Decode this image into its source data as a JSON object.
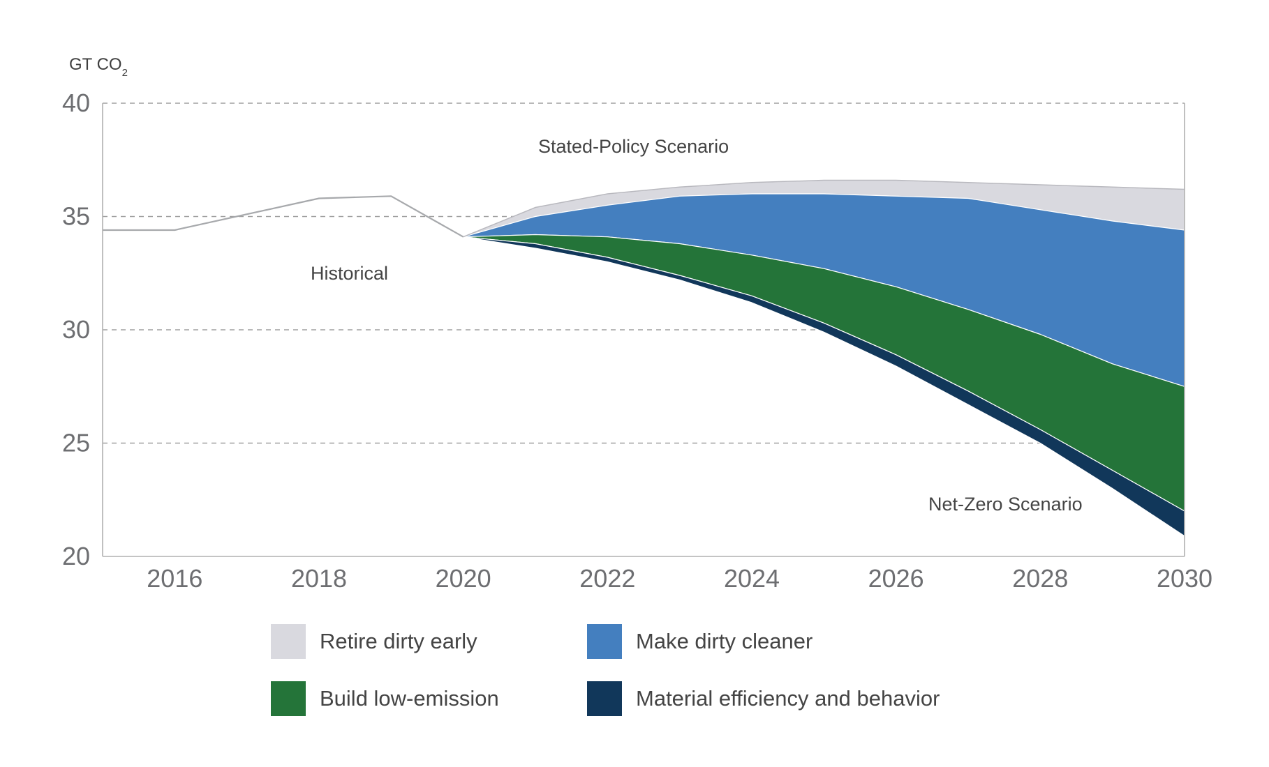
{
  "chart_data": {
    "type": "area",
    "unit_label": {
      "main": "GT CO",
      "sub": "2"
    },
    "x_ticks": [
      "2016",
      "2018",
      "2020",
      "2022",
      "2024",
      "2026",
      "2028",
      "2030"
    ],
    "y_ticks": [
      "20",
      "25",
      "30",
      "35",
      "40"
    ],
    "xlim": [
      2015,
      2030
    ],
    "ylim": [
      20,
      40
    ],
    "grid": {
      "y_dashed": true
    },
    "annotations": {
      "stated_policy": "Stated-Policy Scenario",
      "historical": "Historical",
      "net_zero": "Net-Zero Scenario"
    },
    "colors": {
      "retire": "#d9d9df",
      "cleaner": "#447fbf",
      "build": "#247439",
      "material": "#11375a",
      "historical_line": "#a7a9ac",
      "grid": "#a0a0a0",
      "axis": "#b0b0b0"
    },
    "historical": {
      "x": [
        2015,
        2016,
        2018,
        2019,
        2020
      ],
      "y": [
        34.4,
        34.4,
        35.8,
        35.9,
        34.1
      ]
    },
    "projection_x": [
      2020,
      2021,
      2022,
      2023,
      2024,
      2025,
      2026,
      2027,
      2028,
      2029,
      2030
    ],
    "boundaries": {
      "stated_policy": [
        34.1,
        35.4,
        36.0,
        36.3,
        36.5,
        36.6,
        36.6,
        36.5,
        36.4,
        36.3,
        36.2
      ],
      "after_retire": [
        34.1,
        35.0,
        35.5,
        35.9,
        36.0,
        36.0,
        35.9,
        35.8,
        35.3,
        34.8,
        34.4
      ],
      "after_cleaner": [
        34.1,
        34.2,
        34.1,
        33.8,
        33.3,
        32.7,
        31.9,
        30.9,
        29.8,
        28.5,
        27.5
      ],
      "after_build": [
        34.1,
        33.8,
        33.2,
        32.4,
        31.5,
        30.3,
        28.9,
        27.3,
        25.6,
        23.8,
        22.0
      ],
      "net_zero": [
        34.1,
        33.6,
        33.0,
        32.2,
        31.2,
        29.9,
        28.4,
        26.7,
        25.0,
        23.0,
        20.9
      ]
    },
    "series": [
      {
        "name": "Retire dirty early",
        "color": "#d9d9df"
      },
      {
        "name": "Make dirty cleaner",
        "color": "#447fbf"
      },
      {
        "name": "Build low-emission",
        "color": "#247439"
      },
      {
        "name": "Material efficiency and behavior",
        "color": "#11375a"
      }
    ]
  }
}
